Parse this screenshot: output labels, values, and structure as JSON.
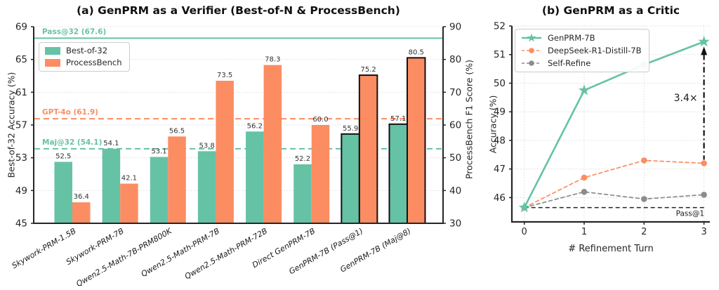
{
  "figure": {
    "background": "#ffffff"
  },
  "colors": {
    "teal": "#66c2a5",
    "orange": "#fc8d62",
    "gray": "#8c8c8c",
    "spine": "#262626",
    "grid": "#d9d9d9",
    "text": "#1a1a1a",
    "bar_label": "#333333",
    "outline": "#111111"
  },
  "chart_data": [
    {
      "id": "verifier",
      "type": "bar",
      "title": "(a) GenPRM as a Verifier (Best-of-N & ProcessBench)",
      "ylabel_left": "Best-of-32 Accuracy (%)",
      "ylabel_right": "ProcessBench F1 Score (%)",
      "ylim_left": [
        45,
        69
      ],
      "yticks_left": [
        45,
        49,
        53,
        57,
        61,
        65,
        69
      ],
      "ylim_right": [
        30,
        90
      ],
      "yticks_right": [
        30,
        40,
        50,
        60,
        70,
        80,
        90
      ],
      "grid": true,
      "categories": [
        "Skywork-PRM-1.5B",
        "Skywork-PRM-7B",
        "Qwen2.5-Math-7B-PRM800K",
        "Qwen2.5-Math-PRM-7B",
        "Qwen2.5-Math-PRM-72B",
        "Direct GenPRM-7B",
        "GenPRM-7B (Pass@1)",
        "GenPRM-7B (Maj@8)"
      ],
      "series": [
        {
          "name": "Best-of-32",
          "axis": "left",
          "color": "#66c2a5",
          "values": [
            52.5,
            54.1,
            53.1,
            53.8,
            56.2,
            52.2,
            55.9,
            57.1
          ]
        },
        {
          "name": "ProcessBench",
          "axis": "right",
          "color": "#fc8d62",
          "values": [
            36.4,
            42.1,
            56.5,
            73.5,
            78.3,
            60.0,
            75.2,
            80.5
          ]
        }
      ],
      "outlined_categories": [
        6,
        7
      ],
      "hlines": [
        {
          "label": "Pass@32 (67.6)",
          "value": 67.6,
          "axis": "left",
          "style": "solid",
          "color": "#66c2a5"
        },
        {
          "label": "GPT-4o (61.9)",
          "value": 61.9,
          "axis": "right",
          "style": "dashed",
          "color": "#fc8d62"
        },
        {
          "label": "Maj@32 (54.1)",
          "value": 54.1,
          "axis": "left",
          "style": "dashed",
          "color": "#66c2a5"
        }
      ],
      "legend_position": "upper left"
    },
    {
      "id": "critic",
      "type": "line",
      "title": "(b) GenPRM as a Critic",
      "xlabel": "# Refinement Turn",
      "ylabel": "Accuracy (%)",
      "x": [
        0,
        1,
        2,
        3
      ],
      "ylim": [
        45.15,
        52
      ],
      "yticks": [
        46,
        47,
        48,
        49,
        50,
        51,
        52
      ],
      "grid": true,
      "series": [
        {
          "name": "GenPRM-7B",
          "color": "#66c2a5",
          "marker": "star",
          "style": "solid",
          "values": [
            45.65,
            49.75,
            50.65,
            51.45
          ]
        },
        {
          "name": "DeepSeek-R1-Distill-7B",
          "color": "#fc8d62",
          "marker": "circle",
          "style": "dashed",
          "values": [
            45.65,
            46.7,
            47.3,
            47.2
          ]
        },
        {
          "name": "Self-Refine",
          "color": "#8c8c8c",
          "marker": "circle",
          "style": "dashed",
          "values": [
            45.65,
            46.2,
            45.95,
            46.1
          ]
        }
      ],
      "hline": {
        "label": "Pass@1",
        "value": 45.65,
        "color": "#222222",
        "style": "dashed"
      },
      "annotation": {
        "text": "3.4×",
        "x": 3,
        "from_value": 47.2,
        "to_value": 51.45
      },
      "legend_position": "upper left"
    }
  ]
}
